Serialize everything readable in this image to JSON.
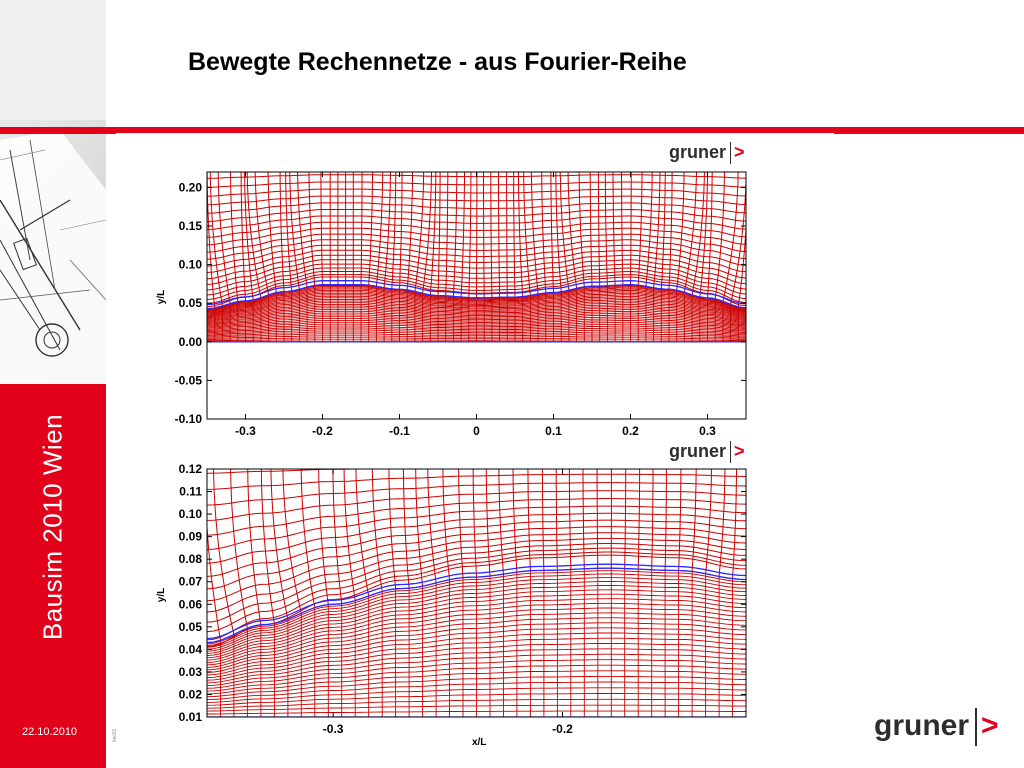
{
  "slide": {
    "title": "Bewegte Rechennetze - aus Fourier-Reihe",
    "sidebar_title": "Bausim 2010 Wien",
    "date": "22.10.2010",
    "code": "kec01",
    "logo_text": "gruner",
    "logo_arrow": ">"
  },
  "colors": {
    "brand_red": "#e2001a",
    "mesh_red": "#cc0000",
    "surface_blue": "#2828ff"
  },
  "chart_data": [
    {
      "type": "mesh",
      "logo_text": "gruner",
      "logo_arrow": ">",
      "xlabel": "",
      "ylabel": "y/L",
      "xlim": [
        -0.35,
        0.35
      ],
      "ylim": [
        -0.1,
        0.22
      ],
      "xticks": [
        "-0.3",
        "-0.2",
        "-0.1",
        "0",
        "0.1",
        "0.2",
        "0.3"
      ],
      "xtick_values": [
        -0.3,
        -0.2,
        -0.1,
        0,
        0.1,
        0.2,
        0.3
      ],
      "yticks": [
        "0.20",
        "0.15",
        "0.10",
        "0.05",
        "0.00",
        "-0.05",
        "-0.10"
      ],
      "ytick_values": [
        0.2,
        0.15,
        0.1,
        0.05,
        0.0,
        -0.05,
        -0.1
      ],
      "surface": [
        {
          "x": -0.35,
          "y": 0.043
        },
        {
          "x": -0.3,
          "y": 0.053
        },
        {
          "x": -0.25,
          "y": 0.065
        },
        {
          "x": -0.2,
          "y": 0.074
        },
        {
          "x": -0.15,
          "y": 0.074
        },
        {
          "x": -0.1,
          "y": 0.068
        },
        {
          "x": -0.05,
          "y": 0.06
        },
        {
          "x": 0.0,
          "y": 0.057
        },
        {
          "x": 0.05,
          "y": 0.058
        },
        {
          "x": 0.1,
          "y": 0.064
        },
        {
          "x": 0.15,
          "y": 0.072
        },
        {
          "x": 0.2,
          "y": 0.074
        },
        {
          "x": 0.25,
          "y": 0.068
        },
        {
          "x": 0.3,
          "y": 0.057
        },
        {
          "x": 0.35,
          "y": 0.044
        }
      ],
      "mesh_bottom": 0.0
    },
    {
      "type": "mesh",
      "logo_text": "gruner",
      "logo_arrow": ">",
      "xlabel": "x/L",
      "ylabel": "y/L",
      "xlim": [
        -0.355,
        -0.12
      ],
      "ylim": [
        0.01,
        0.12
      ],
      "xticks": [
        "-0.3",
        "-0.2"
      ],
      "xtick_values": [
        -0.3,
        -0.2
      ],
      "yticks": [
        "0.12",
        "0.11",
        "0.10",
        "0.09",
        "0.08",
        "0.07",
        "0.06",
        "0.05",
        "0.04",
        "0.03",
        "0.02",
        "0.01"
      ],
      "ytick_values": [
        0.12,
        0.11,
        0.1,
        0.09,
        0.08,
        0.07,
        0.06,
        0.05,
        0.04,
        0.03,
        0.02,
        0.01
      ],
      "surface": [
        {
          "x": -0.355,
          "y": 0.043
        },
        {
          "x": -0.33,
          "y": 0.051
        },
        {
          "x": -0.3,
          "y": 0.06
        },
        {
          "x": -0.27,
          "y": 0.067
        },
        {
          "x": -0.24,
          "y": 0.072
        },
        {
          "x": -0.21,
          "y": 0.075
        },
        {
          "x": -0.18,
          "y": 0.076
        },
        {
          "x": -0.15,
          "y": 0.075
        },
        {
          "x": -0.12,
          "y": 0.071
        }
      ],
      "mesh_bottom": 0.01
    }
  ]
}
